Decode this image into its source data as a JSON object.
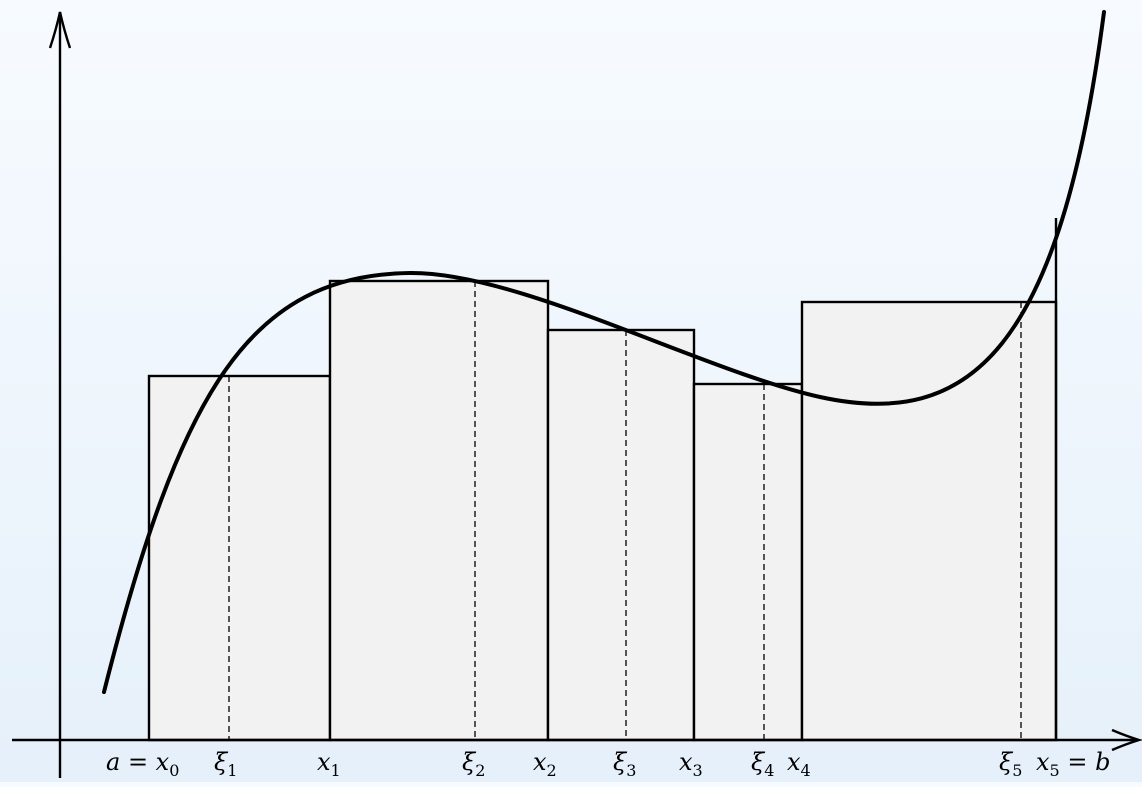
{
  "diagram": {
    "partition": [
      {
        "label": "a = x",
        "sub": "0"
      },
      {
        "label": "x",
        "sub": "1"
      },
      {
        "label": "x",
        "sub": "2"
      },
      {
        "label": "x",
        "sub": "3"
      },
      {
        "label": "x",
        "sub": "4"
      },
      {
        "label": "x",
        "sub": "5",
        "suffix": " = b"
      }
    ],
    "sample_points": [
      {
        "label": "ξ",
        "sub": "1"
      },
      {
        "label": "ξ",
        "sub": "2"
      },
      {
        "label": "ξ",
        "sub": "3"
      },
      {
        "label": "ξ",
        "sub": "4"
      },
      {
        "label": "ξ",
        "sub": "5"
      }
    ],
    "colors": {
      "stroke": "#000000",
      "rect_fill": "#f2f2f2",
      "background_top": "#f7fbff",
      "background_bottom": "#e6f0fa"
    }
  }
}
